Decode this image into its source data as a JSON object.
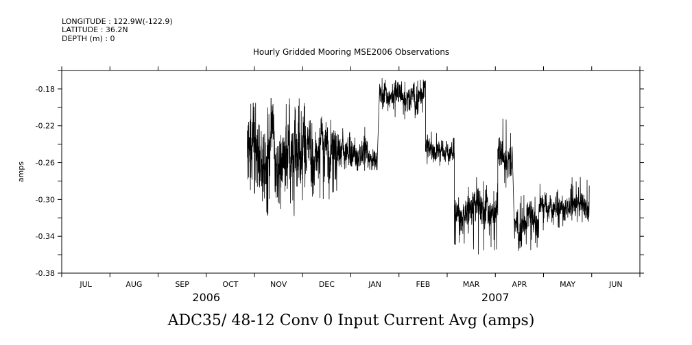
{
  "header": {
    "longitude": "LONGITUDE : 122.9W(-122.9)",
    "latitude": "LATITUDE : 36.2N",
    "depth": "DEPTH (m) : 0"
  },
  "chart_data": {
    "type": "line",
    "title": "Hourly Gridded Mooring MSE2006 Observations",
    "xlabel": "ADC35/ 48-12 Conv 0 Input Current Avg (amps)",
    "ylabel": "amps",
    "ylim": [
      -0.38,
      -0.16
    ],
    "yticks": [
      -0.18,
      -0.22,
      -0.26,
      -0.3,
      -0.34,
      -0.38
    ],
    "ytick_labels": [
      "-0.18",
      "-0.22",
      "-0.26",
      "-0.30",
      "-0.34",
      "-0.38"
    ],
    "x_units": "month index (0 = Jul 1 2006)",
    "xlim": [
      0,
      12
    ],
    "month_labels": [
      "JUL",
      "AUG",
      "SEP",
      "OCT",
      "NOV",
      "DEC",
      "JAN",
      "FEB",
      "MAR",
      "APR",
      "MAY",
      "JUN"
    ],
    "year_labels": [
      {
        "label": "2006",
        "at": 3.0
      },
      {
        "label": "2007",
        "at": 9.0
      }
    ],
    "series": [
      {
        "name": "ADC35/ 48-12 Conv 0 Input Current Avg",
        "segments": [
          {
            "x0": 3.85,
            "x1": 5.05,
            "mean": -0.25,
            "spread": 0.03,
            "min": -0.32,
            "max": -0.19
          },
          {
            "x0": 5.05,
            "x1": 5.75,
            "mean": -0.245,
            "spread": 0.02,
            "min": -0.3,
            "max": -0.21
          },
          {
            "x0": 5.75,
            "x1": 6.35,
            "mean": -0.245,
            "spread": 0.012,
            "min": -0.27,
            "max": -0.22
          },
          {
            "x0": 6.35,
            "x1": 6.55,
            "mean": -0.258,
            "spread": 0.008,
            "min": -0.268,
            "max": -0.245
          },
          {
            "x0": 6.6,
            "x1": 6.9,
            "mean": -0.183,
            "spread": 0.008,
            "min": -0.205,
            "max": -0.165
          },
          {
            "x0": 6.9,
            "x1": 7.55,
            "mean": -0.185,
            "spread": 0.01,
            "min": -0.215,
            "max": -0.17
          },
          {
            "x0": 7.55,
            "x1": 8.15,
            "mean": -0.245,
            "spread": 0.008,
            "min": -0.265,
            "max": -0.225
          },
          {
            "x0": 8.15,
            "x1": 8.55,
            "mean": -0.31,
            "spread": 0.012,
            "min": -0.355,
            "max": -0.285
          },
          {
            "x0": 8.55,
            "x1": 9.05,
            "mean": -0.305,
            "spread": 0.013,
            "min": -0.36,
            "max": -0.275
          },
          {
            "x0": 9.05,
            "x1": 9.35,
            "mean": -0.25,
            "spread": 0.014,
            "min": -0.29,
            "max": -0.21
          },
          {
            "x0": 9.4,
            "x1": 9.9,
            "mean": -0.325,
            "spread": 0.012,
            "min": -0.36,
            "max": -0.295
          },
          {
            "x0": 9.9,
            "x1": 10.45,
            "mean": -0.305,
            "spread": 0.009,
            "min": -0.335,
            "max": -0.28
          },
          {
            "x0": 10.45,
            "x1": 10.95,
            "mean": -0.305,
            "spread": 0.009,
            "min": -0.325,
            "max": -0.275
          }
        ]
      }
    ]
  }
}
